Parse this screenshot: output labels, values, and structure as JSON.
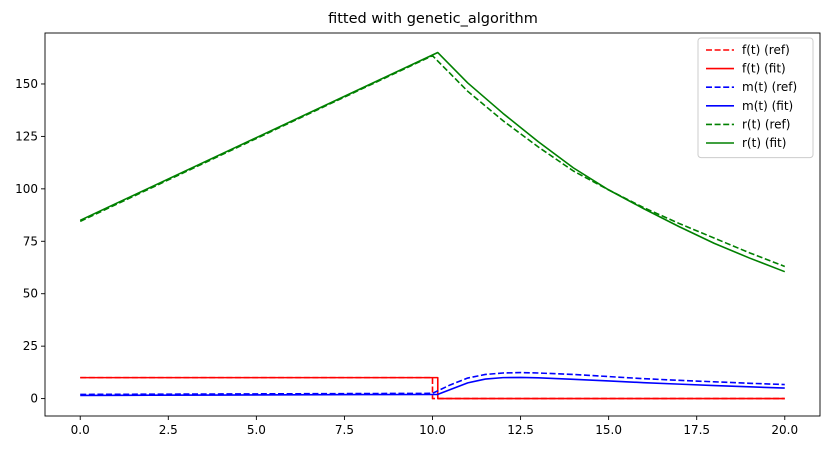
{
  "chart_data": {
    "type": "line",
    "title": "fitted with genetic_algorithm",
    "xlabel": "",
    "ylabel": "",
    "xlim": [
      -1.0,
      21.0
    ],
    "ylim": [
      -8.3,
      174.3
    ],
    "xticks": [
      0.0,
      2.5,
      5.0,
      7.5,
      10.0,
      12.5,
      15.0,
      17.5,
      20.0
    ],
    "xtick_labels": [
      "0.0",
      "2.5",
      "5.0",
      "7.5",
      "10.0",
      "12.5",
      "15.0",
      "17.5",
      "20.0"
    ],
    "yticks": [
      0,
      25,
      50,
      75,
      100,
      125,
      150
    ],
    "ytick_labels": [
      "0",
      "25",
      "50",
      "75",
      "100",
      "125",
      "150"
    ],
    "grid": false,
    "legend_position": "top-right",
    "series": [
      {
        "name": "f(t) (ref)",
        "color": "#ff0000",
        "dash": "dashed",
        "x": [
          0,
          10.0,
          10.0,
          20
        ],
        "y": [
          10,
          10,
          0,
          0
        ]
      },
      {
        "name": "f(t) (fit)",
        "color": "#ff0000",
        "dash": "solid",
        "x": [
          0,
          10.15,
          10.15,
          20
        ],
        "y": [
          10,
          10,
          0,
          0
        ]
      },
      {
        "name": "m(t) (ref)",
        "color": "#0000ff",
        "dash": "dashed",
        "x": [
          0,
          2,
          4,
          6,
          8,
          10,
          10.5,
          11,
          11.5,
          12,
          12.5,
          13,
          14,
          15,
          16,
          17,
          18,
          19,
          20
        ],
        "y": [
          2,
          2.1,
          2.2,
          2.3,
          2.4,
          2.5,
          6.5,
          9.8,
          11.5,
          12.2,
          12.4,
          12.2,
          11.5,
          10.5,
          9.5,
          8.7,
          8.0,
          7.3,
          6.7
        ]
      },
      {
        "name": "m(t) (fit)",
        "color": "#0000ff",
        "dash": "solid",
        "x": [
          0,
          2,
          4,
          6,
          8,
          10.15,
          10.5,
          11,
          11.5,
          12,
          12.5,
          13,
          14,
          15,
          16,
          17,
          18,
          19,
          20
        ],
        "y": [
          1.5,
          1.6,
          1.7,
          1.8,
          1.9,
          2.0,
          4.3,
          7.5,
          9.3,
          10.0,
          10.1,
          9.9,
          9.2,
          8.4,
          7.6,
          6.9,
          6.2,
          5.6,
          5.0
        ]
      },
      {
        "name": "r(t) (ref)",
        "color": "#008000",
        "dash": "dashed",
        "x": [
          0,
          10.0,
          11,
          12,
          13,
          14,
          15,
          16,
          17,
          18,
          19,
          20
        ],
        "y": [
          84.5,
          163.5,
          146.5,
          132.5,
          120.0,
          108.5,
          99.5,
          91.0,
          83.5,
          76.5,
          69.5,
          63.0
        ]
      },
      {
        "name": "r(t) (fit)",
        "color": "#008000",
        "dash": "solid",
        "x": [
          0,
          10.15,
          11,
          12,
          13,
          14,
          15,
          16,
          17,
          18,
          19,
          20
        ],
        "y": [
          85.0,
          165.0,
          150.5,
          136.0,
          122.5,
          110.0,
          99.5,
          90.5,
          82.0,
          74.0,
          67.0,
          60.5
        ]
      }
    ]
  }
}
